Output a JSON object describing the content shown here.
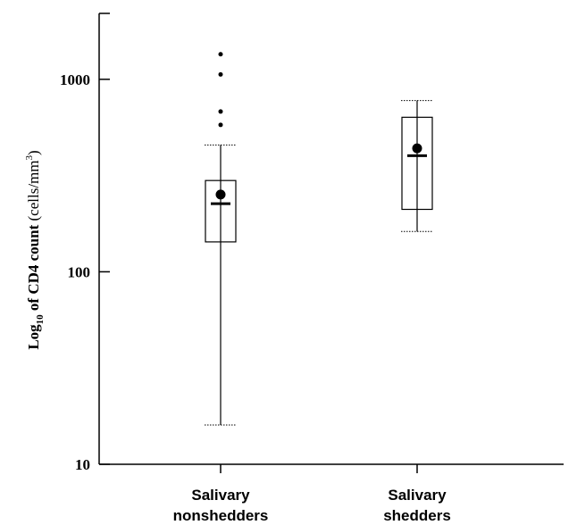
{
  "chart_data": {
    "type": "box",
    "ylabel": {
      "prefix": "Log",
      "subscript": "10",
      "middle": " of CD4 count ",
      "unit_start": "(cells/mm",
      "superscript": "3",
      "unit_end": ")"
    },
    "y_scale": "log",
    "ylim": [
      10,
      2200
    ],
    "yticks": [
      {
        "value": 10,
        "label": "10"
      },
      {
        "value": 100,
        "label": "100"
      },
      {
        "value": 1000,
        "label": "1000"
      }
    ],
    "groups": [
      {
        "label_lines": [
          "Salivary",
          "nonshedders"
        ],
        "whisker_low": 16,
        "q1": 143,
        "median": 226,
        "mean": 252,
        "q3": 298,
        "whisker_high": 456,
        "outliers": [
          580,
          680,
          1060,
          1350
        ]
      },
      {
        "label_lines": [
          "Salivary",
          "shedders"
        ],
        "whisker_low": 162,
        "q1": 211,
        "median": 401,
        "mean": 438,
        "q3": 635,
        "whisker_high": 776,
        "outliers": []
      }
    ],
    "colors": {
      "stroke": "#000000",
      "box_fill": "#ffffff",
      "background": "#ffffff"
    }
  }
}
